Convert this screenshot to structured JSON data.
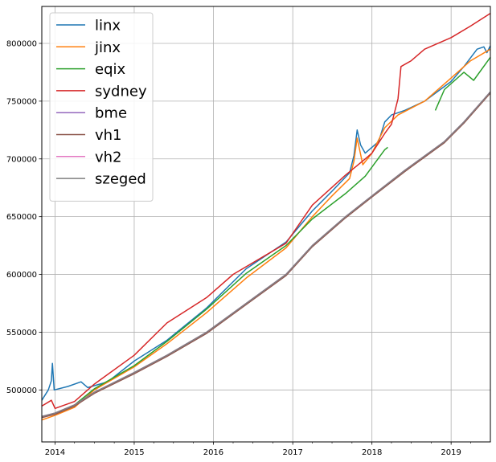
{
  "chart_data": {
    "type": "line",
    "title": "",
    "xlabel": "",
    "ylabel": "",
    "x_axis": {
      "type": "date",
      "range": [
        "2013-11-01",
        "2019-07-01"
      ],
      "major_ticks": [
        {
          "date": "2014-01-01",
          "label": "2014"
        },
        {
          "date": "2015-01-01",
          "label": "2015"
        },
        {
          "date": "2016-01-01",
          "label": "2016"
        },
        {
          "date": "2017-01-01",
          "label": "2017"
        },
        {
          "date": "2018-01-01",
          "label": "2018"
        },
        {
          "date": "2019-01-01",
          "label": "2019"
        }
      ]
    },
    "y_axis": {
      "range": [
        455000,
        832000
      ],
      "ticks": [
        500000,
        550000,
        600000,
        650000,
        700000,
        750000,
        800000
      ],
      "tick_labels": [
        "500000",
        "550000",
        "600000",
        "650000",
        "700000",
        "750000",
        "800000"
      ]
    },
    "grid": true,
    "legend_position": "top-left",
    "series": [
      {
        "name": "linx",
        "color": "#1f77b4",
        "points": [
          [
            "2013-11-01",
            491000
          ],
          [
            "2013-12-01",
            500000
          ],
          [
            "2013-12-15",
            508000
          ],
          [
            "2013-12-20",
            523000
          ],
          [
            "2013-12-28",
            500000
          ],
          [
            "2014-03-01",
            503000
          ],
          [
            "2014-05-01",
            507000
          ],
          [
            "2014-06-01",
            502000
          ],
          [
            "2014-09-01",
            507000
          ],
          [
            "2015-01-01",
            525000
          ],
          [
            "2015-06-01",
            543000
          ],
          [
            "2015-12-01",
            571000
          ],
          [
            "2016-06-01",
            605000
          ],
          [
            "2016-12-01",
            628000
          ],
          [
            "2017-04-01",
            655000
          ],
          [
            "2017-07-01",
            672000
          ],
          [
            "2017-09-20",
            688000
          ],
          [
            "2017-10-10",
            703000
          ],
          [
            "2017-10-25",
            725000
          ],
          [
            "2017-11-10",
            712000
          ],
          [
            "2017-12-01",
            705000
          ],
          [
            "2018-02-01",
            715000
          ],
          [
            "2018-03-01",
            732000
          ],
          [
            "2018-04-01",
            738000
          ],
          [
            "2018-06-01",
            742000
          ],
          [
            "2018-09-01",
            750000
          ],
          [
            "2019-01-01",
            767000
          ],
          [
            "2019-03-01",
            780000
          ],
          [
            "2019-05-01",
            795000
          ],
          [
            "2019-06-01",
            797000
          ],
          [
            "2019-06-15",
            792000
          ],
          [
            "2019-07-01",
            798000
          ]
        ]
      },
      {
        "name": "jinx",
        "color": "#ff7f0e",
        "points": [
          [
            "2013-11-01",
            474000
          ],
          [
            "2014-01-01",
            478000
          ],
          [
            "2014-04-01",
            485000
          ],
          [
            "2014-07-01",
            500000
          ],
          [
            "2015-01-01",
            520000
          ],
          [
            "2015-06-01",
            540000
          ],
          [
            "2015-12-01",
            567000
          ],
          [
            "2016-06-01",
            597000
          ],
          [
            "2016-12-01",
            623000
          ],
          [
            "2017-04-01",
            650000
          ],
          [
            "2017-07-01",
            668000
          ],
          [
            "2017-09-20",
            683000
          ],
          [
            "2017-10-10",
            698000
          ],
          [
            "2017-10-25",
            718000
          ],
          [
            "2017-11-20",
            695000
          ],
          [
            "2018-01-01",
            705000
          ],
          [
            "2018-03-01",
            727000
          ],
          [
            "2018-05-01",
            738000
          ],
          [
            "2018-09-01",
            750000
          ],
          [
            "2019-01-01",
            770000
          ],
          [
            "2019-04-01",
            785000
          ],
          [
            "2019-07-01",
            795000
          ]
        ]
      },
      {
        "name": "eqix",
        "color": "#2ca02c",
        "points": [
          [
            "2013-11-01",
            476000
          ],
          [
            "2014-01-01",
            480000
          ],
          [
            "2014-04-01",
            487000
          ],
          [
            "2014-07-01",
            501000
          ],
          [
            "2015-01-01",
            521000
          ],
          [
            "2015-06-01",
            542000
          ],
          [
            "2015-12-01",
            570000
          ],
          [
            "2016-06-01",
            601000
          ],
          [
            "2016-12-01",
            625000
          ],
          [
            "2017-04-01",
            648000
          ],
          [
            "2017-09-01",
            670000
          ],
          [
            "2017-12-01",
            685000
          ],
          [
            "2018-03-01",
            708000
          ],
          [
            "2018-03-15",
            710000
          ],
          null,
          [
            "2018-10-20",
            742000
          ],
          [
            "2018-12-01",
            760000
          ],
          [
            "2019-03-01",
            775000
          ],
          [
            "2019-04-15",
            768000
          ],
          [
            "2019-07-01",
            788000
          ]
        ]
      },
      {
        "name": "sydney",
        "color": "#d62728",
        "points": [
          [
            "2013-11-01",
            486000
          ],
          [
            "2013-12-15",
            491000
          ],
          [
            "2014-01-01",
            484000
          ],
          [
            "2014-04-01",
            490000
          ],
          [
            "2014-07-01",
            505000
          ],
          [
            "2015-01-01",
            530000
          ],
          [
            "2015-06-01",
            558000
          ],
          [
            "2015-12-01",
            580000
          ],
          [
            "2016-04-01",
            600000
          ],
          [
            "2016-12-01",
            627000
          ],
          [
            "2017-04-01",
            660000
          ],
          [
            "2017-09-01",
            686000
          ],
          [
            "2017-12-01",
            700000
          ],
          [
            "2018-01-01",
            705000
          ],
          [
            "2018-03-01",
            722000
          ],
          [
            "2018-04-01",
            730000
          ],
          [
            "2018-05-01",
            752000
          ],
          [
            "2018-05-15",
            780000
          ],
          [
            "2018-07-01",
            785000
          ],
          [
            "2018-09-01",
            795000
          ],
          [
            "2019-01-01",
            805000
          ],
          [
            "2019-04-01",
            815000
          ],
          [
            "2019-07-01",
            826000
          ]
        ]
      },
      {
        "name": "bme",
        "color": "#9467bd",
        "points": [
          [
            "2013-11-01",
            477000
          ],
          [
            "2014-01-01",
            480000
          ],
          [
            "2014-04-01",
            487000
          ],
          [
            "2014-07-01",
            498000
          ],
          [
            "2015-01-01",
            515000
          ],
          [
            "2015-06-01",
            530000
          ],
          [
            "2015-12-01",
            550000
          ],
          [
            "2016-06-01",
            575000
          ],
          [
            "2016-12-01",
            600000
          ],
          [
            "2017-04-01",
            625000
          ],
          [
            "2017-09-01",
            650000
          ],
          [
            "2018-01-01",
            668000
          ],
          [
            "2018-06-01",
            690000
          ],
          [
            "2018-12-01",
            715000
          ],
          [
            "2019-03-01",
            732000
          ],
          [
            "2019-07-01",
            758000
          ]
        ]
      },
      {
        "name": "vh1",
        "color": "#8c564b",
        "points": [
          [
            "2013-11-01",
            476000
          ],
          [
            "2014-01-01",
            479000
          ],
          [
            "2014-04-01",
            486000
          ],
          [
            "2014-07-01",
            497000
          ],
          [
            "2015-01-01",
            514000
          ],
          [
            "2015-06-01",
            529000
          ],
          [
            "2015-12-01",
            549000
          ],
          [
            "2016-06-01",
            574000
          ],
          [
            "2016-12-01",
            599000
          ],
          [
            "2017-04-01",
            624000
          ],
          [
            "2017-09-01",
            649000
          ],
          [
            "2018-01-01",
            667000
          ],
          [
            "2018-06-01",
            689000
          ],
          [
            "2018-12-01",
            714000
          ],
          [
            "2019-03-01",
            731000
          ],
          [
            "2019-07-01",
            757000
          ]
        ]
      },
      {
        "name": "vh2",
        "color": "#e377c2",
        "points": [
          [
            "2013-11-01",
            477000
          ],
          [
            "2014-01-01",
            480000
          ],
          [
            "2014-04-01",
            487000
          ],
          [
            "2014-07-01",
            498000
          ],
          [
            "2015-01-01",
            515000
          ],
          [
            "2015-06-01",
            530000
          ],
          [
            "2015-12-01",
            550000
          ],
          [
            "2016-06-01",
            575000
          ],
          [
            "2016-12-01",
            600000
          ],
          [
            "2017-04-01",
            625000
          ],
          [
            "2017-09-01",
            650000
          ],
          [
            "2018-01-01",
            668000
          ],
          [
            "2018-06-01",
            690000
          ],
          [
            "2018-12-01",
            715000
          ],
          [
            "2019-03-01",
            732000
          ],
          [
            "2019-07-01",
            758000
          ]
        ]
      },
      {
        "name": "szeged",
        "color": "#7f7f7f",
        "points": [
          [
            "2013-11-01",
            477000
          ],
          [
            "2014-01-01",
            480000
          ],
          [
            "2014-04-01",
            487000
          ],
          [
            "2014-07-01",
            498000
          ],
          [
            "2015-01-01",
            515000
          ],
          [
            "2015-06-01",
            530000
          ],
          [
            "2015-12-01",
            550000
          ],
          [
            "2016-06-01",
            575000
          ],
          [
            "2016-12-01",
            600000
          ],
          [
            "2017-04-01",
            625000
          ],
          [
            "2017-09-01",
            650000
          ],
          [
            "2018-01-01",
            668000
          ],
          [
            "2018-06-01",
            690000
          ],
          [
            "2018-12-01",
            715000
          ],
          [
            "2019-03-01",
            732000
          ],
          [
            "2019-07-01",
            758000
          ]
        ]
      }
    ]
  }
}
